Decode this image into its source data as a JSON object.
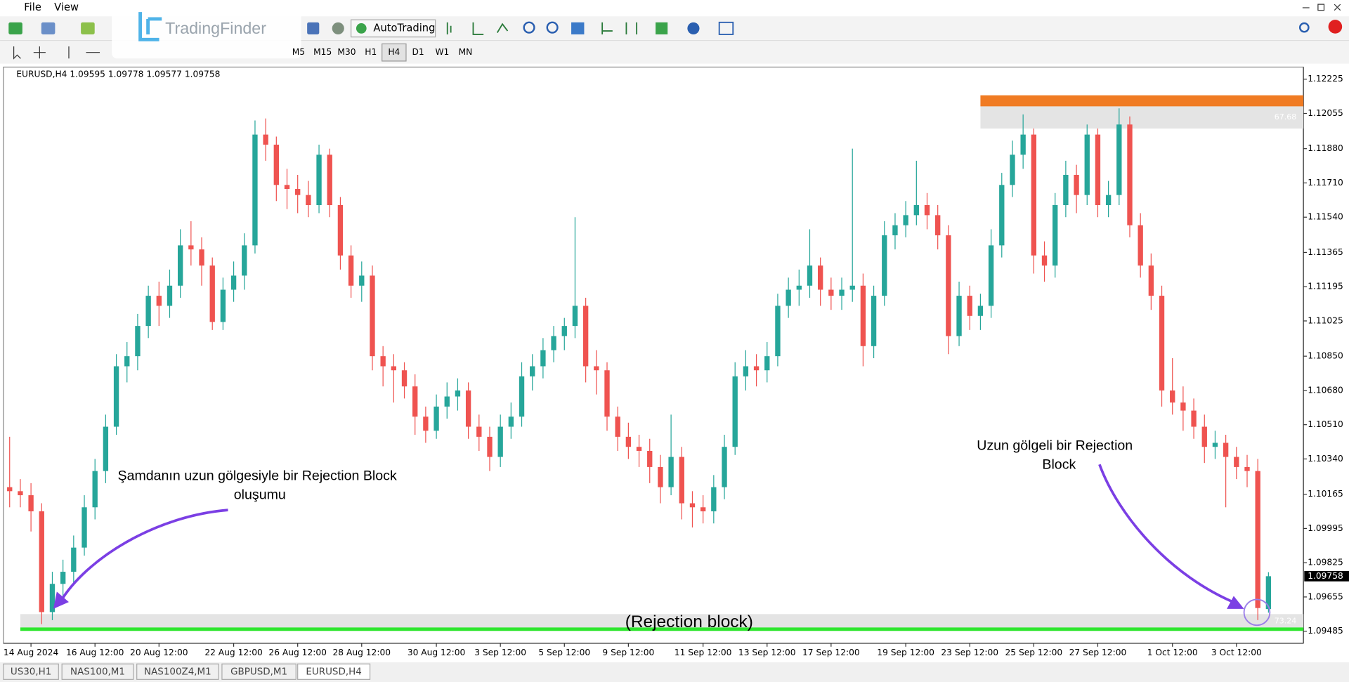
{
  "menu": [
    "File",
    "View"
  ],
  "logo": "TradingFinder",
  "toolbar": {
    "autotrading": "AutoTrading",
    "timeframes": [
      "M5",
      "M15",
      "M30",
      "H1",
      "H4",
      "D1",
      "W1",
      "MN"
    ]
  },
  "chart_data": {
    "type": "candlestick",
    "title": "EURUSD,H4",
    "bull_color": "#26a69a",
    "bear_color": "#ef5350",
    "categories": [
      null,
      null,
      "14 Aug 2024",
      null,
      null,
      null,
      null,
      null,
      "16 Aug 12:00",
      null,
      null,
      null,
      null,
      null,
      "20 Aug 12:00",
      null,
      null,
      null,
      null,
      null,
      null,
      "22 Aug 12:00",
      null,
      null,
      null,
      null,
      null,
      "26 Aug 12:00",
      null,
      null,
      null,
      null,
      null,
      "28 Aug 12:00",
      null,
      null,
      null,
      null,
      null,
      null,
      "30 Aug 12:00",
      null,
      null,
      null,
      null,
      null,
      "3 Sep 12:00",
      null,
      null,
      null,
      null,
      null,
      "5 Sep 12:00",
      null,
      null,
      null,
      null,
      null,
      "9 Sep 12:00",
      null,
      null,
      null,
      null,
      null,
      null,
      "11 Sep 12:00",
      null,
      null,
      null,
      null,
      null,
      "13 Sep 12:00",
      null,
      null,
      null,
      null,
      null,
      "17 Sep 12:00",
      null,
      null,
      null,
      null,
      null,
      null,
      "19 Sep 12:00",
      null,
      null,
      null,
      null,
      null,
      "23 Sep 12:00",
      null,
      null,
      null,
      null,
      null,
      "25 Sep 12:00",
      null,
      null,
      null,
      null,
      null,
      "27 Sep 12:00",
      null,
      null,
      null,
      null,
      null,
      null,
      "1 Oct 12:00",
      null,
      null,
      null,
      null,
      null,
      "3 Oct 12:00",
      null,
      null,
      null
    ],
    "candles": [
      [
        1.102,
        1.1045,
        1.101,
        1.1018
      ],
      [
        1.1018,
        1.1024,
        1.101,
        1.1016
      ],
      [
        1.1016,
        1.1022,
        1.0998,
        1.1008
      ],
      [
        1.1008,
        1.1012,
        1.0952,
        1.0958
      ],
      [
        1.0958,
        1.0978,
        1.0954,
        1.0972
      ],
      [
        1.0972,
        1.0984,
        1.0966,
        1.0978
      ],
      [
        1.0978,
        1.0996,
        1.0972,
        1.099
      ],
      [
        1.099,
        1.1016,
        1.0986,
        1.101
      ],
      [
        1.101,
        1.1034,
        1.1004,
        1.1028
      ],
      [
        1.1028,
        1.1056,
        1.1022,
        1.105
      ],
      [
        1.105,
        1.1086,
        1.1046,
        1.108
      ],
      [
        1.108,
        1.1092,
        1.1072,
        1.1085
      ],
      [
        1.1085,
        1.1106,
        1.1078,
        1.11
      ],
      [
        1.11,
        1.112,
        1.1094,
        1.1115
      ],
      [
        1.1115,
        1.1122,
        1.11,
        1.111
      ],
      [
        1.111,
        1.1128,
        1.1104,
        1.112
      ],
      [
        1.112,
        1.1148,
        1.1114,
        1.114
      ],
      [
        1.114,
        1.1152,
        1.113,
        1.1138
      ],
      [
        1.1138,
        1.1144,
        1.112,
        1.113
      ],
      [
        1.113,
        1.1134,
        1.1098,
        1.1102
      ],
      [
        1.1102,
        1.1124,
        1.1098,
        1.1118
      ],
      [
        1.1118,
        1.1132,
        1.1112,
        1.1125
      ],
      [
        1.1125,
        1.1146,
        1.1118,
        1.114
      ],
      [
        1.114,
        1.1202,
        1.1136,
        1.1195
      ],
      [
        1.1195,
        1.1203,
        1.1182,
        1.119
      ],
      [
        1.119,
        1.1194,
        1.1162,
        1.117
      ],
      [
        1.117,
        1.1178,
        1.1158,
        1.1168
      ],
      [
        1.1168,
        1.1175,
        1.1156,
        1.1165
      ],
      [
        1.1165,
        1.1172,
        1.1154,
        1.116
      ],
      [
        1.116,
        1.119,
        1.1156,
        1.1185
      ],
      [
        1.1185,
        1.1188,
        1.1154,
        1.116
      ],
      [
        1.116,
        1.1164,
        1.1128,
        1.1135
      ],
      [
        1.1135,
        1.114,
        1.1114,
        1.112
      ],
      [
        1.112,
        1.1132,
        1.1112,
        1.1125
      ],
      [
        1.1125,
        1.113,
        1.1078,
        1.1085
      ],
      [
        1.1085,
        1.109,
        1.107,
        1.108
      ],
      [
        1.108,
        1.1086,
        1.1062,
        1.1078
      ],
      [
        1.1078,
        1.1082,
        1.1064,
        1.107
      ],
      [
        1.107,
        1.1076,
        1.1046,
        1.1055
      ],
      [
        1.1055,
        1.106,
        1.1042,
        1.1048
      ],
      [
        1.1048,
        1.1066,
        1.1044,
        1.106
      ],
      [
        1.106,
        1.1072,
        1.1054,
        1.1065
      ],
      [
        1.1065,
        1.1074,
        1.1058,
        1.1068
      ],
      [
        1.1068,
        1.1072,
        1.1044,
        1.105
      ],
      [
        1.105,
        1.1056,
        1.1038,
        1.1045
      ],
      [
        1.1045,
        1.105,
        1.1028,
        1.1035
      ],
      [
        1.1035,
        1.1056,
        1.103,
        1.105
      ],
      [
        1.105,
        1.1062,
        1.1044,
        1.1055
      ],
      [
        1.1055,
        1.1082,
        1.105,
        1.1075
      ],
      [
        1.1075,
        1.1086,
        1.1068,
        1.108
      ],
      [
        1.108,
        1.1094,
        1.1074,
        1.1088
      ],
      [
        1.1088,
        1.11,
        1.1082,
        1.1095
      ],
      [
        1.1095,
        1.1104,
        1.1088,
        1.11
      ],
      [
        1.11,
        1.1154,
        1.1094,
        1.111
      ],
      [
        1.111,
        1.1114,
        1.1072,
        1.108
      ],
      [
        1.108,
        1.1088,
        1.1066,
        1.1078
      ],
      [
        1.1078,
        1.1082,
        1.1048,
        1.1055
      ],
      [
        1.1055,
        1.106,
        1.1038,
        1.1045
      ],
      [
        1.1045,
        1.1052,
        1.1034,
        1.104
      ],
      [
        1.104,
        1.1046,
        1.103,
        1.1038
      ],
      [
        1.1038,
        1.1044,
        1.1022,
        1.103
      ],
      [
        1.103,
        1.1036,
        1.1012,
        1.102
      ],
      [
        1.102,
        1.1056,
        1.1016,
        1.1035
      ],
      [
        1.1035,
        1.104,
        1.1004,
        1.1012
      ],
      [
        1.1012,
        1.1018,
        1.1,
        1.101
      ],
      [
        1.101,
        1.1016,
        1.1002,
        1.1008
      ],
      [
        1.1008,
        1.1026,
        1.1002,
        1.102
      ],
      [
        1.102,
        1.1046,
        1.1014,
        1.104
      ],
      [
        1.104,
        1.1082,
        1.1036,
        1.1075
      ],
      [
        1.1075,
        1.1088,
        1.1068,
        1.108
      ],
      [
        1.108,
        1.1086,
        1.107,
        1.1078
      ],
      [
        1.1078,
        1.1092,
        1.1072,
        1.1085
      ],
      [
        1.1085,
        1.1116,
        1.108,
        1.111
      ],
      [
        1.111,
        1.1124,
        1.1104,
        1.1118
      ],
      [
        1.1118,
        1.1128,
        1.111,
        1.112
      ],
      [
        1.112,
        1.1148,
        1.1114,
        1.113
      ],
      [
        1.113,
        1.1134,
        1.111,
        1.1118
      ],
      [
        1.1118,
        1.1124,
        1.1108,
        1.1115
      ],
      [
        1.1115,
        1.1124,
        1.1108,
        1.1118
      ],
      [
        1.1118,
        1.1188,
        1.1112,
        1.112
      ],
      [
        1.112,
        1.1126,
        1.108,
        1.109
      ],
      [
        1.109,
        1.112,
        1.1084,
        1.1115
      ],
      [
        1.1115,
        1.1152,
        1.111,
        1.1145
      ],
      [
        1.1145,
        1.1156,
        1.1138,
        1.115
      ],
      [
        1.115,
        1.1162,
        1.1144,
        1.1155
      ],
      [
        1.1155,
        1.1182,
        1.115,
        1.116
      ],
      [
        1.116,
        1.1166,
        1.1148,
        1.1155
      ],
      [
        1.1155,
        1.116,
        1.1138,
        1.1145
      ],
      [
        1.1145,
        1.115,
        1.1086,
        1.1095
      ],
      [
        1.1095,
        1.1122,
        1.109,
        1.1115
      ],
      [
        1.1115,
        1.112,
        1.1098,
        1.1105
      ],
      [
        1.1105,
        1.1116,
        1.1098,
        1.111
      ],
      [
        1.111,
        1.1148,
        1.1104,
        1.114
      ],
      [
        1.114,
        1.1176,
        1.1134,
        1.117
      ],
      [
        1.117,
        1.1192,
        1.1164,
        1.1185
      ],
      [
        1.1185,
        1.1205,
        1.1178,
        1.1195
      ],
      [
        1.1195,
        1.1198,
        1.1126,
        1.1135
      ],
      [
        1.1135,
        1.1142,
        1.1122,
        1.113
      ],
      [
        1.113,
        1.1166,
        1.1124,
        1.116
      ],
      [
        1.116,
        1.1182,
        1.1154,
        1.1175
      ],
      [
        1.1175,
        1.118,
        1.1156,
        1.1165
      ],
      [
        1.1165,
        1.12,
        1.116,
        1.1195
      ],
      [
        1.1195,
        1.1198,
        1.1154,
        1.116
      ],
      [
        1.116,
        1.1172,
        1.1154,
        1.1165
      ],
      [
        1.1165,
        1.1208,
        1.116,
        1.12
      ],
      [
        1.12,
        1.1204,
        1.1144,
        1.115
      ],
      [
        1.115,
        1.1156,
        1.1124,
        1.113
      ],
      [
        1.113,
        1.1136,
        1.1108,
        1.1115
      ],
      [
        1.1115,
        1.112,
        1.106,
        1.1068
      ],
      [
        1.1068,
        1.1084,
        1.1056,
        1.1062
      ],
      [
        1.1062,
        1.107,
        1.1048,
        1.1058
      ],
      [
        1.1058,
        1.1064,
        1.1044,
        1.105
      ],
      [
        1.105,
        1.1056,
        1.1032,
        1.104
      ],
      [
        1.104,
        1.1048,
        1.1034,
        1.1042
      ],
      [
        1.1042,
        1.1046,
        1.101,
        1.1035
      ],
      [
        1.1035,
        1.104,
        1.1024,
        1.103
      ],
      [
        1.103,
        1.1036,
        1.102,
        1.1028
      ],
      [
        1.1028,
        1.1034,
        1.0954,
        1.096
      ],
      [
        1.09595,
        1.09778,
        1.09577,
        1.09758
      ]
    ],
    "ylim": [
      1.09425,
      1.12285
    ],
    "yticks": [
      1.12225,
      1.12055,
      {
        "value": 1.1188,
        "label": "1.11880"
      },
      {
        "value": 1.1171,
        "label": "1.11710"
      },
      {
        "value": 1.1154,
        "label": "1.11540"
      },
      1.11365,
      1.11195,
      1.11025,
      {
        "value": 1.1085,
        "label": "1.10850"
      },
      {
        "value": 1.1068,
        "label": "1.10680"
      },
      {
        "value": 1.1051,
        "label": "1.10510"
      },
      {
        "value": 1.1034,
        "label": "1.10340"
      },
      1.10165,
      1.09995,
      1.09825,
      1.09655,
      1.09485
    ],
    "zones": [
      {
        "from": 1.1209,
        "to": 1.12145,
        "color": "#f07b23",
        "start": 91
      },
      {
        "from": 1.1198,
        "to": 1.1209,
        "color": "#e4e4e4",
        "start": 91,
        "label": "67.68"
      },
      {
        "from": 1.095,
        "to": 1.0957,
        "color": "#e4e4e4",
        "start": 1,
        "label": "73.24"
      }
    ],
    "levels": [
      {
        "value": 1.09495,
        "color": "#2ee62e",
        "start": 1
      }
    ],
    "annotations": [
      "Şamdanın uzun gölgesiyle bir Rejection Block",
      "oluşumu",
      "Uzun gölgeli bir Rejection",
      "Block",
      "(Rejection block)"
    ]
  },
  "tabs": [
    "US30,H1",
    "NAS100,M1",
    "NAS100Z4,M1",
    "GBPUSD,M1",
    "EURUSD,H4"
  ]
}
